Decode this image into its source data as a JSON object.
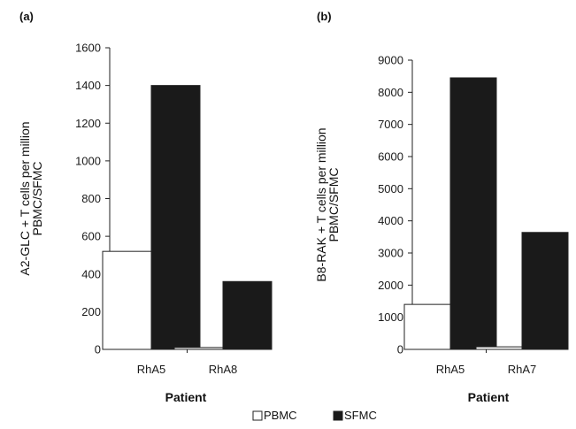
{
  "legend": [
    {
      "name": "PBMC",
      "color": "#ffffff"
    },
    {
      "name": "SFMC",
      "color": "#1a1a1a"
    }
  ],
  "chart_data": [
    {
      "type": "bar",
      "panel_label": "(a)",
      "categories": [
        "RhA5",
        "RhA8"
      ],
      "series": [
        {
          "name": "PBMC",
          "color": "#ffffff",
          "values": [
            520,
            10
          ]
        },
        {
          "name": "SFMC",
          "color": "#1a1a1a",
          "values": [
            1400,
            360
          ]
        }
      ],
      "xlabel": "Patient",
      "ylabel": [
        "A2-GLC + T cells per million",
        "PBMC/SFMC"
      ],
      "ylim": [
        0,
        1600
      ],
      "yticks": [
        0,
        200,
        400,
        600,
        800,
        1000,
        1200,
        1400,
        1600
      ],
      "grid": false
    },
    {
      "type": "bar",
      "panel_label": "(b)",
      "categories": [
        "RhA5",
        "RhA7"
      ],
      "series": [
        {
          "name": "PBMC",
          "color": "#ffffff",
          "values": [
            1400,
            80
          ]
        },
        {
          "name": "SFMC",
          "color": "#1a1a1a",
          "values": [
            8450,
            3640
          ]
        }
      ],
      "xlabel": "Patient",
      "ylabel": [
        "B8-RAK + T cells per million",
        "PBMC/SFMC"
      ],
      "ylim": [
        0,
        9000
      ],
      "yticks": [
        0,
        1000,
        2000,
        3000,
        4000,
        5000,
        6000,
        7000,
        8000,
        9000
      ],
      "grid": false
    }
  ]
}
